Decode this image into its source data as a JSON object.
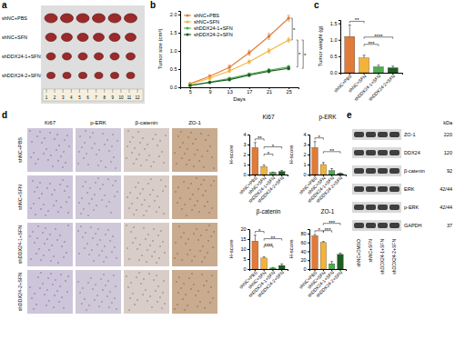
{
  "figure": {
    "panel_labels": [
      "a",
      "b",
      "c",
      "d",
      "e"
    ],
    "tumor_groups": [
      "shNC+PBS",
      "shNC+SFN",
      "shDDX24-1+SFN",
      "shDDX24-2+SFN"
    ],
    "ruler": [
      "1",
      "2",
      "3",
      "4",
      "5",
      "6",
      "7",
      "8",
      "9",
      "10",
      "11",
      "12"
    ],
    "ihc_stains": [
      "Ki67",
      "p-ERK",
      "β-catenin",
      "ZO-1"
    ],
    "ihc_groups": [
      "shNC+PBS",
      "shNC+SFN",
      "shDDX24-1+SFN",
      "shDDX24-2+SFN"
    ],
    "blot_unit": "kDa",
    "blot_proteins": [
      "ZO-1",
      "DDX24",
      "β-catenin",
      "ERK",
      "p-ERK",
      "GAPDH"
    ],
    "blot_sizes": [
      "220",
      "120",
      "92",
      "42/44",
      "42/44",
      "37"
    ],
    "blot_lanes": [
      "shNC+DMSO",
      "shNC+SFN",
      "shDDX24-1+SFN",
      "shDDX24-2+SFN"
    ]
  },
  "chart_data": [
    {
      "type": "line",
      "x_label": "Days",
      "y_label": "Tumor size (cm³)",
      "x": [
        5,
        9,
        13,
        17,
        21,
        25
      ],
      "xlim": [
        3,
        27
      ],
      "xticks": [
        5,
        9,
        13,
        17,
        21,
        25
      ],
      "ylim": [
        0,
        2.1
      ],
      "yticks": [
        {
          "value": 0,
          "label": "0.0"
        },
        0.5,
        {
          "value": 1,
          "label": "1.0"
        },
        1.5,
        {
          "value": 2,
          "label": "2.0"
        }
      ],
      "legend": "top-left",
      "marker": "circle",
      "series": [
        {
          "name": "shNC+PBS",
          "color": "#e07b39",
          "values": [
            0.1,
            0.3,
            0.55,
            0.95,
            1.4,
            1.9
          ],
          "errors": [
            0.02,
            0.04,
            0.06,
            0.07,
            0.08,
            0.08
          ]
        },
        {
          "name": "shNC+SFN",
          "color": "#f2b33d",
          "values": [
            0.08,
            0.25,
            0.45,
            0.7,
            1.0,
            1.3
          ],
          "errors": [
            0.02,
            0.03,
            0.04,
            0.05,
            0.06,
            0.06
          ]
        },
        {
          "name": "shDDX24-1+SFN",
          "color": "#4caf50",
          "values": [
            0.05,
            0.14,
            0.24,
            0.36,
            0.47,
            0.56
          ],
          "errors": [
            0.01,
            0.02,
            0.03,
            0.03,
            0.04,
            0.04
          ]
        },
        {
          "name": "shDDX24-2+SFN",
          "color": "#1b5e20",
          "values": [
            0.05,
            0.13,
            0.21,
            0.33,
            0.44,
            0.52
          ],
          "errors": [
            0.01,
            0.02,
            0.03,
            0.03,
            0.04,
            0.04
          ]
        }
      ],
      "comparisons": [
        {
          "groups": [
            "shNC+PBS",
            "shNC+SFN"
          ],
          "label": "*"
        },
        {
          "groups": [
            "shNC+SFN",
            "shDDX24-1+SFN"
          ],
          "label": "*"
        },
        {
          "groups": [
            "shNC+SFN",
            "shDDX24-2+SFN"
          ],
          "label": "*"
        }
      ]
    },
    {
      "type": "bar",
      "y_label": "Tumor weight (g)",
      "categories": [
        "shNC+PBS",
        "shNC+SFN",
        "shDDX24-1+SFN",
        "shDDX24-2+SFN"
      ],
      "values": [
        1.1,
        0.45,
        0.18,
        0.15
      ],
      "errors": [
        0.35,
        0.08,
        0.05,
        0.05
      ],
      "colors": [
        "#e07b39",
        "#f2b33d",
        "#4caf50",
        "#1b5e20"
      ],
      "ylim": [
        0,
        1.6
      ],
      "yticks": [
        {
          "value": 0,
          "label": "0.0"
        },
        0.5,
        {
          "value": 1,
          "label": "1.0"
        },
        1.5
      ],
      "comparisons": [
        {
          "groups": [
            "shNC+PBS",
            "shNC+SFN"
          ],
          "label": "**"
        },
        {
          "groups": [
            "shNC+SFN",
            "shDDX24-1+SFN"
          ],
          "label": "***"
        },
        {
          "groups": [
            "shNC+SFN",
            "shDDX24-2+SFN"
          ],
          "label": "****"
        }
      ]
    },
    {
      "type": "bar",
      "title": "Ki67",
      "y_label": "H-score",
      "categories": [
        "shNC+PBS",
        "shNC+SFN",
        "shDDX24-1+SFN",
        "shDDX24-2+SFN"
      ],
      "values": [
        2.7,
        0.8,
        0.2,
        0.3
      ],
      "errors": [
        0.5,
        0.15,
        0.05,
        0.1
      ],
      "colors": [
        "#e07b39",
        "#f2b33d",
        "#4caf50",
        "#1b5e20"
      ],
      "ylim": [
        0,
        4
      ],
      "yticks": [
        0,
        1,
        2,
        3,
        4
      ],
      "comparisons": [
        {
          "groups": [
            "shNC+PBS",
            "shNC+SFN"
          ],
          "label": "**"
        },
        {
          "groups": [
            "shNC+SFN",
            "shDDX24-1+SFN"
          ],
          "label": "*"
        },
        {
          "groups": [
            "shNC+SFN",
            "shDDX24-2+SFN"
          ],
          "label": "*"
        }
      ]
    },
    {
      "type": "bar",
      "title": "p-ERK",
      "y_label": "H-score",
      "categories": [
        "shNC+PBS",
        "shNC+SFN",
        "shDDX24-1+SFN",
        "shDDX24-2+SFN"
      ],
      "values": [
        2.7,
        1.0,
        0.4,
        0.1
      ],
      "errors": [
        0.6,
        0.2,
        0.2,
        0.05
      ],
      "colors": [
        "#e07b39",
        "#f2b33d",
        "#4caf50",
        "#1b5e20"
      ],
      "ylim": [
        0,
        4
      ],
      "yticks": [
        0,
        1,
        2,
        3,
        4
      ],
      "comparisons": [
        {
          "groups": [
            "shNC+PBS",
            "shNC+SFN"
          ],
          "label": "*"
        },
        {
          "groups": [
            "shNC+SFN",
            "shDDX24-2+SFN"
          ],
          "label": "**"
        }
      ]
    },
    {
      "type": "bar",
      "title": "β-catenin",
      "y_label": "H-score",
      "categories": [
        "shNC+PBS",
        "shNC+SFN",
        "shDDX24-1+SFN",
        "shDDX24-2+SFN"
      ],
      "values": [
        14,
        5.5,
        0.5,
        1.8
      ],
      "errors": [
        3,
        0.6,
        0.3,
        0.8
      ],
      "colors": [
        "#e07b39",
        "#f2b33d",
        "#4caf50",
        "#1b5e20"
      ],
      "ylim": [
        0,
        20
      ],
      "yticks": [
        0,
        5,
        10,
        15,
        20
      ],
      "comparisons": [
        {
          "groups": [
            "shNC+PBS",
            "shNC+SFN"
          ],
          "label": "*"
        },
        {
          "groups": [
            "shNC+SFN",
            "shDDX24-1+SFN"
          ],
          "label": "****"
        },
        {
          "groups": [
            "shNC+SFN",
            "shDDX24-2+SFN"
          ],
          "label": "**"
        }
      ]
    },
    {
      "type": "bar",
      "title": "ZO-1",
      "y_label": "H-score",
      "categories": [
        "shNC+PBS",
        "shNC+SFN",
        "shDDX24-1+SFN",
        "shDDX24-2+SFN"
      ],
      "values": [
        75,
        60,
        12,
        33
      ],
      "errors": [
        3,
        2,
        5,
        3
      ],
      "colors": [
        "#e07b39",
        "#f2b33d",
        "#4caf50",
        "#1b5e20"
      ],
      "ylim": [
        0,
        90
      ],
      "yticks": [
        0,
        20,
        40,
        60,
        80
      ],
      "comparisons": [
        {
          "groups": [
            "shNC+PBS",
            "shNC+SFN"
          ],
          "label": "*"
        },
        {
          "groups": [
            "shNC+SFN",
            "shDDX24-1+SFN"
          ],
          "label": "***"
        },
        {
          "groups": [
            "shNC+SFN",
            "shDDX24-2+SFN"
          ],
          "label": "***"
        }
      ]
    }
  ]
}
